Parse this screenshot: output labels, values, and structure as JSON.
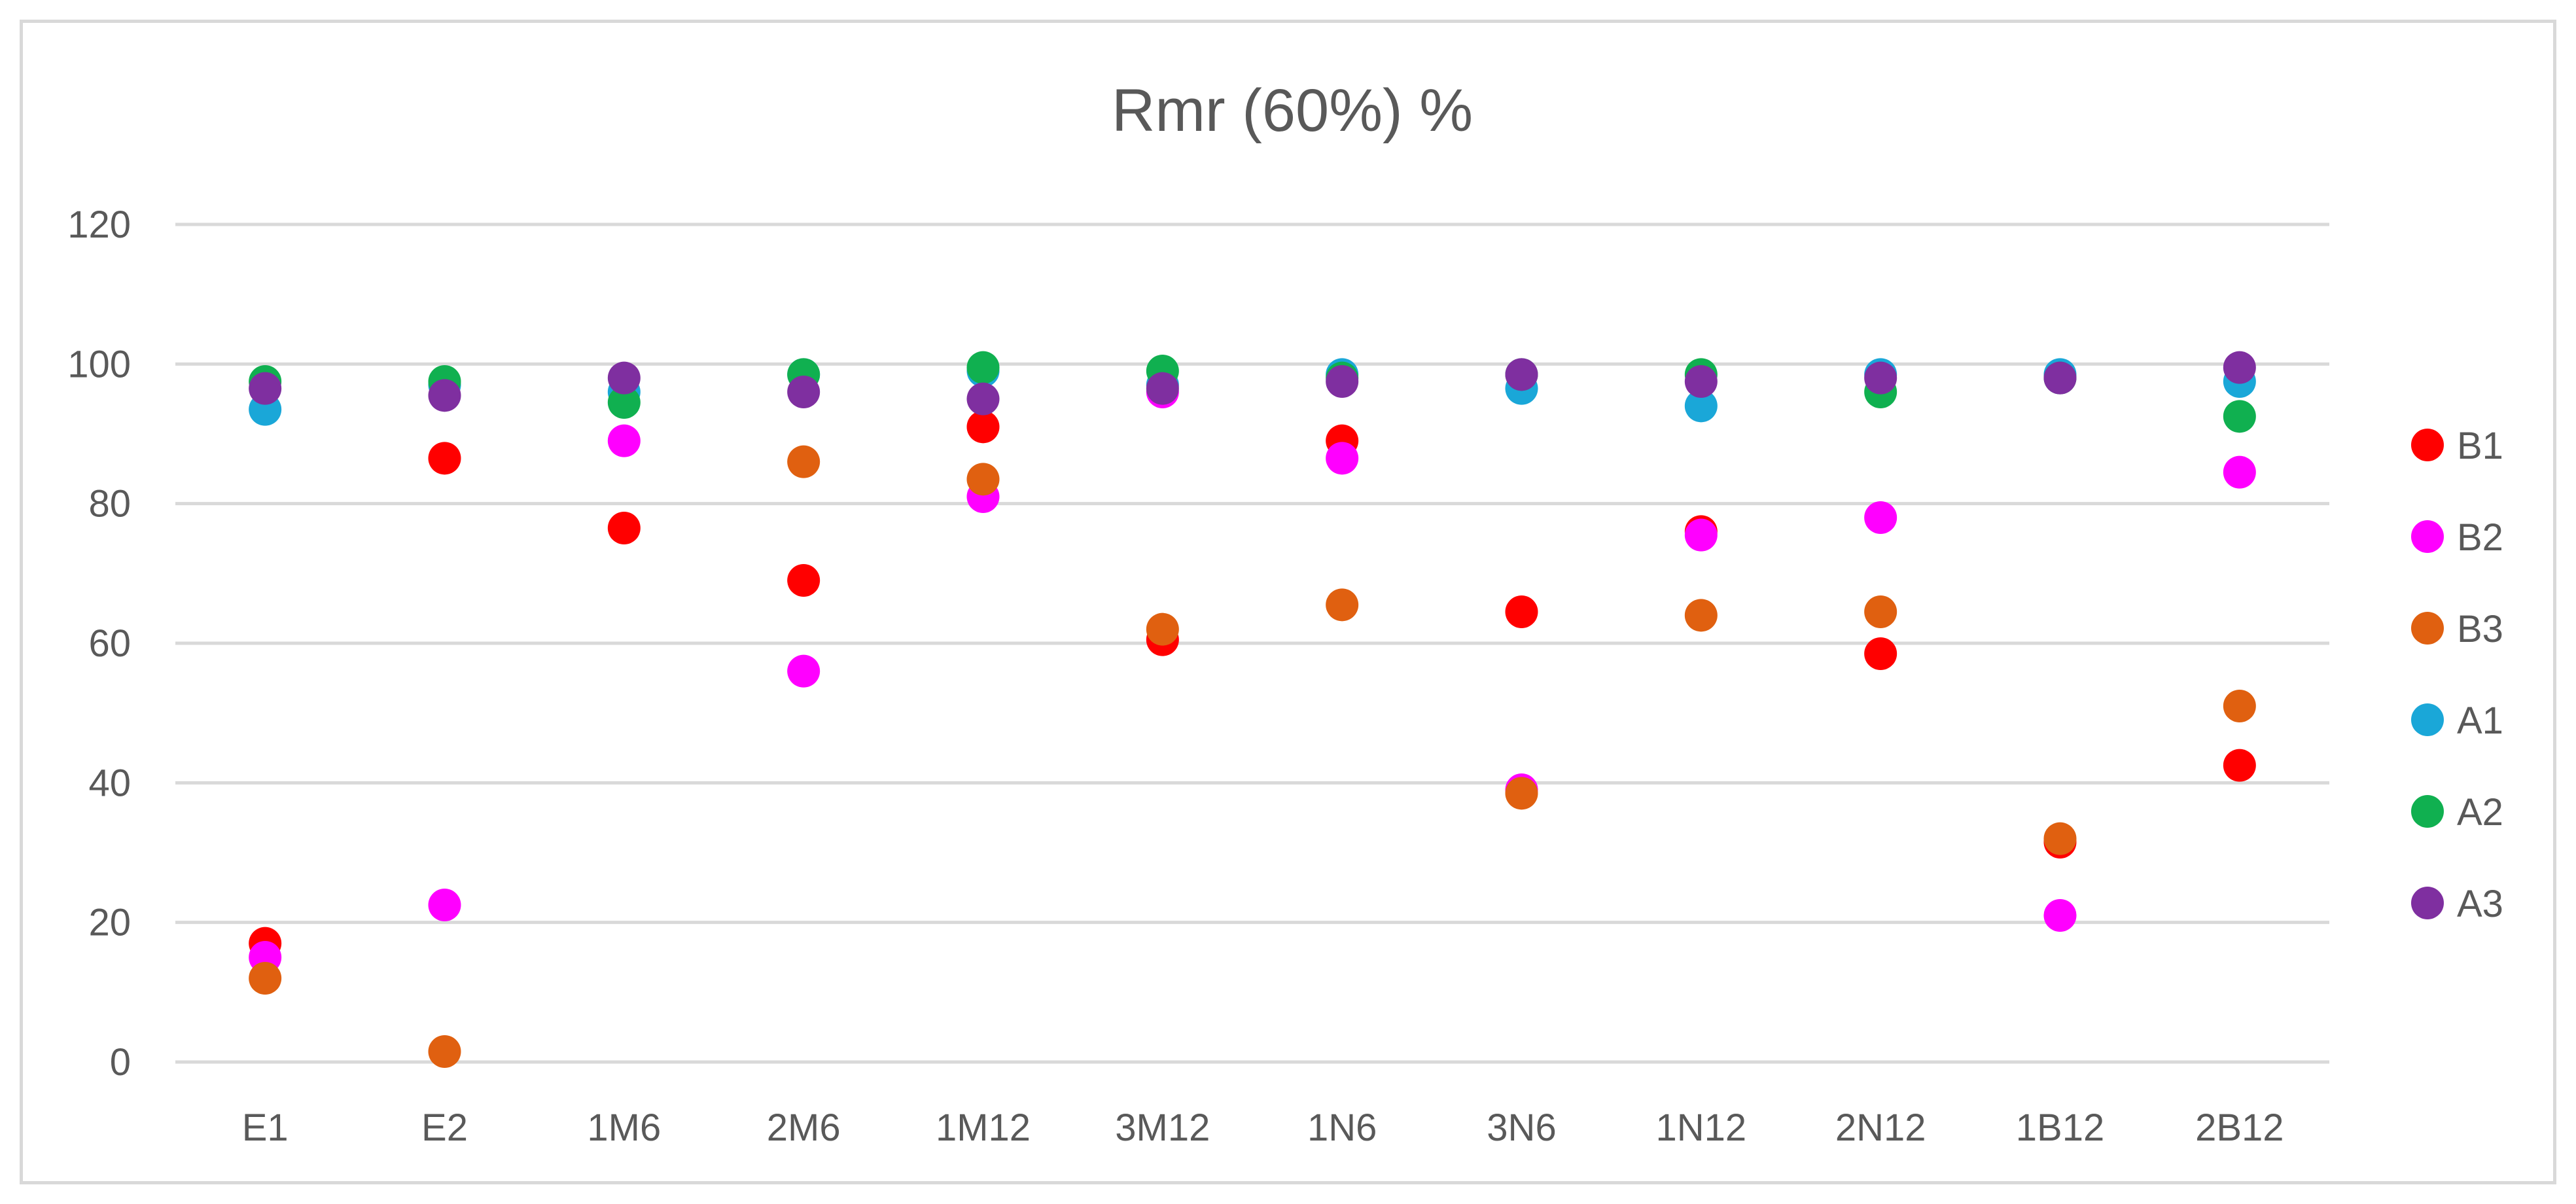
{
  "chart_data": {
    "type": "scatter",
    "title": "Rmr (60%)  %",
    "xlabel": "",
    "ylabel": "",
    "categories": [
      "E1",
      "E2",
      "1M6",
      "2M6",
      "1M12",
      "3M12",
      "1N6",
      "3N6",
      "1N12",
      "2N12",
      "1B12",
      "2B12"
    ],
    "ylim": [
      0,
      120
    ],
    "yticks": [
      "0",
      "20",
      "40",
      "60",
      "80",
      "100",
      "120"
    ],
    "grid": true,
    "legend_position": "right",
    "series": [
      {
        "name": "B1",
        "color": "#ff0000",
        "values": [
          17,
          86.5,
          76.5,
          69,
          91,
          60.5,
          89,
          64.5,
          76,
          58.5,
          31.5,
          42.5
        ]
      },
      {
        "name": "B2",
        "color": "#ff00ff",
        "values": [
          15,
          22.5,
          89,
          56,
          81,
          96,
          86.5,
          39,
          75.5,
          78,
          21,
          84.5
        ]
      },
      {
        "name": "B3",
        "color": "#e06010",
        "values": [
          12,
          1.5,
          null,
          86,
          83.5,
          62,
          65.5,
          38.5,
          64,
          64.5,
          32,
          51
        ]
      },
      {
        "name": "A1",
        "color": "#1aa7d8",
        "values": [
          93.5,
          97,
          96,
          98.5,
          99,
          97,
          98.5,
          96.5,
          94,
          98.5,
          98.5,
          97.5
        ]
      },
      {
        "name": "A2",
        "color": "#10b050",
        "values": [
          97.5,
          97.5,
          94.5,
          98.5,
          99.5,
          99,
          98,
          98.5,
          98.5,
          96,
          98,
          92.5
        ]
      },
      {
        "name": "A3",
        "color": "#7f2fa0",
        "values": [
          96.5,
          95.5,
          98,
          96,
          95,
          96.5,
          97.5,
          98.5,
          97.5,
          98,
          98,
          99.5
        ]
      }
    ]
  }
}
